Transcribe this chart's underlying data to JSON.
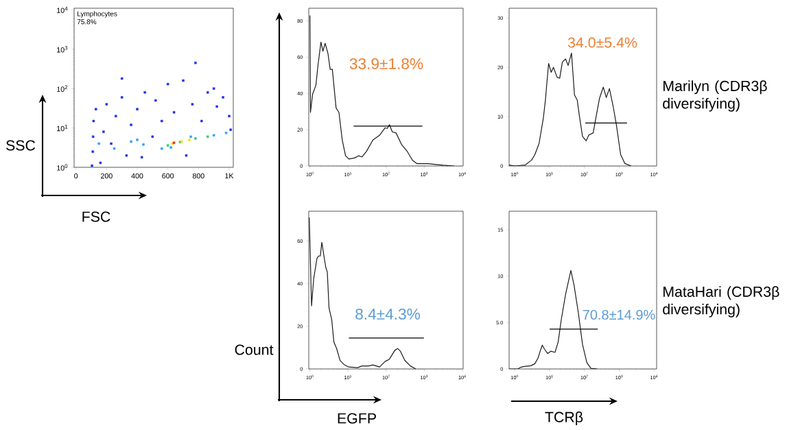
{
  "chart_data": [
    {
      "type": "scatter",
      "xlabel": "FSC",
      "ylabel": "SSC",
      "log": "y",
      "marker": "square",
      "annotations": [
        "Lymphocytes",
        "75.8%"
      ],
      "xlim": [
        -12,
        1027
      ],
      "ylim": [
        1,
        11000
      ],
      "xticks": [
        0,
        200,
        400,
        600,
        800,
        {
          "value": 1000,
          "label": "1K"
        }
      ],
      "yticks": [
        {
          "value": 1,
          "label": "10$^{0}$"
        },
        {
          "value": 10,
          "label": "10$^{1}$"
        },
        {
          "value": 100,
          "label": "10$^{2}$"
        },
        {
          "value": 1000,
          "label": "10$^{3}$"
        },
        {
          "value": 10000,
          "label": "10$^{4}$"
        }
      ],
      "series": [
        {
          "x": [
            105,
            110,
            112,
            115,
            130,
            160,
            180,
            200,
            230,
            260,
            300,
            300,
            330,
            360,
            400,
            430,
            450,
            500,
            520,
            560,
            600,
            640,
            700,
            720,
            760,
            780,
            820,
            860,
            900,
            920,
            960,
            1000,
            1010,
            150,
            250,
            360,
            400,
            440,
            560,
            620,
            900,
            980,
            750,
            600,
            680,
            780,
            860,
            630,
            690,
            740,
            640
          ],
          "values": [
            1.1,
            2.5,
            6,
            15,
            30,
            1.3,
            8,
            40,
            4,
            20,
            180,
            60,
            2,
            12,
            30,
            1.8,
            80,
            6,
            50,
            15,
            130,
            25,
            160,
            2,
            40,
            450,
            15,
            80,
            100,
            35,
            60,
            20,
            9,
            4,
            3,
            4.5,
            5,
            3.8,
            3,
            3.2,
            6.5,
            7.5,
            6,
            3.6,
            4.4,
            5.4,
            6,
            4,
            4.5,
            5,
            4.2
          ],
          "colors": [
            "#2030f0",
            "#2030f0",
            "#2030f0",
            "#2030f0",
            "#2030f0",
            "#2030f0",
            "#2030f0",
            "#2030f0",
            "#2030f0",
            "#2030f0",
            "#2030f0",
            "#2030f0",
            "#2030f0",
            "#2030f0",
            "#2030f0",
            "#2030f0",
            "#2030f0",
            "#2030f0",
            "#2030f0",
            "#2030f0",
            "#2030f0",
            "#2030f0",
            "#2030f0",
            "#2030f0",
            "#2030f0",
            "#2030f0",
            "#2030f0",
            "#2030f0",
            "#2030f0",
            "#2030f0",
            "#2030f0",
            "#2030f0",
            "#2030f0",
            "#30a0ff",
            "#30a0ff",
            "#30a0ff",
            "#30a0ff",
            "#30a0ff",
            "#30a0ff",
            "#30a0ff",
            "#30a0ff",
            "#30a0ff",
            "#30a0ff",
            "#30d070",
            "#30d070",
            "#30d070",
            "#30d070",
            "#f0e000",
            "#f0e000",
            "#f0e000",
            "#e83010"
          ]
        }
      ]
    },
    {
      "type": "line",
      "log": "x",
      "annotations": [
        "33.9±1.8%"
      ],
      "xlim": [
        0.93,
        10500
      ],
      "ylim": [
        0,
        87
      ],
      "xticks": [
        {
          "value": 1,
          "label": "10$^{0}$"
        },
        {
          "value": 10,
          "label": "10$^{1}$"
        },
        {
          "value": 100,
          "label": "10$^{2}$"
        },
        {
          "value": 1000,
          "label": "10$^{3}$"
        },
        {
          "value": 10000,
          "label": "10$^{4}$"
        }
      ],
      "yticks": [
        0,
        20,
        40,
        60,
        80
      ],
      "series": [
        {
          "color": "#1a1a1a",
          "x": [
            1,
            1.03,
            1.17,
            1.43,
            1.63,
            1.94,
            2.19,
            2.5,
            2.97,
            3.39,
            3.87,
            4.85,
            5.77,
            7.03,
            8.58,
            10.5,
            14.6,
            19.0,
            23.2,
            30.3,
            45.1,
            67.1,
            93.5,
            107,
            122,
            145,
            182,
            253,
            353,
            492,
            641,
            1245,
            1854,
            3155,
            6120
          ],
          "values": [
            83,
            29.5,
            39.5,
            44.5,
            55.8,
            68.3,
            63.3,
            67.7,
            62,
            53.3,
            53.3,
            32,
            29.5,
            14.4,
            5.6,
            3.8,
            4.4,
            5.6,
            5,
            8,
            14.4,
            16.9,
            21,
            20.7,
            22.8,
            18.8,
            18.2,
            11.9,
            8.2,
            3.1,
            1.3,
            1.3,
            0.9,
            0.4,
            0
          ]
        },
        {
          "color": "#000000",
          "x": [
            14.0,
            893
          ],
          "values": [
            22,
            22
          ]
        }
      ]
    },
    {
      "type": "line",
      "log": "x",
      "annotations": [
        "34.0±5.4%",
        "Marilyn (CDR3β diversifying)"
      ],
      "xlim": [
        0.69,
        11800
      ],
      "ylim": [
        0,
        32
      ],
      "xticks": [
        {
          "value": 1,
          "label": "10$^{0}$"
        },
        {
          "value": 10,
          "label": "10$^{1}$"
        },
        {
          "value": 100,
          "label": "10$^{2}$"
        },
        {
          "value": 1000,
          "label": "10$^{3}$"
        },
        {
          "value": 10000,
          "label": "10$^{4}$"
        }
      ],
      "yticks": [
        0,
        10,
        20,
        30
      ],
      "series": [
        {
          "color": "#1a1a1a",
          "x": [
            0.69,
            1,
            1.42,
            2.01,
            3.06,
            3.78,
            5.0,
            6.62,
            7.61,
            8.16,
            9.39,
            11.1,
            12.9,
            16.4,
            19.5,
            23.3,
            28.8,
            34.0,
            42.6,
            51.8,
            62.1,
            71.4,
            88.1,
            112,
            134,
            178,
            219,
            270,
            348,
            423,
            521,
            671,
            828,
            1096,
            1449,
            2203
          ],
          "values": [
            0.2,
            0,
            0.1,
            0.2,
            1.2,
            2.3,
            4.6,
            9.7,
            13.4,
            16,
            20.8,
            19,
            20,
            18,
            17.8,
            21.1,
            21.7,
            20.4,
            22.9,
            14.4,
            13.4,
            10.2,
            6.0,
            5.1,
            6.3,
            6.7,
            10.2,
            13.7,
            16.0,
            13.9,
            15.7,
            12.0,
            8.3,
            2.3,
            0.5,
            0
          ]
        },
        {
          "color": "#000000",
          "x": [
            106,
            1667
          ],
          "values": [
            8.7,
            8.7
          ]
        }
      ]
    },
    {
      "type": "line",
      "log": "x",
      "xlabel": "EGFP",
      "ylabel": "Count",
      "annotations": [
        "8.4±4.3%"
      ],
      "xlim": [
        0.93,
        10500
      ],
      "ylim": [
        0,
        74
      ],
      "xticks": [
        {
          "value": 1,
          "label": "10$^{0}$"
        },
        {
          "value": 10,
          "label": "10$^{1}$"
        },
        {
          "value": 100,
          "label": "10$^{2}$"
        },
        {
          "value": 1000,
          "label": "10$^{3}$"
        },
        {
          "value": 10000,
          "label": "10$^{4}$"
        }
      ],
      "yticks": [
        0,
        20,
        40,
        60
      ],
      "series": [
        {
          "color": "#1a1a1a",
          "x": [
            0.96,
            1.1,
            1.25,
            1.53,
            1.68,
            1.87,
            2.05,
            2.28,
            2.6,
            2.85,
            3.17,
            3.72,
            4.25,
            5.05,
            6.16,
            8.04,
            10.5,
            17.8,
            23.2,
            34.6,
            45.1,
            67.1,
            93.5,
            122,
            170,
            200,
            237,
            309,
            431,
            600
          ],
          "values": [
            71,
            29.6,
            42.3,
            51.9,
            53,
            53,
            59.4,
            54,
            47.7,
            45.5,
            28.5,
            23.2,
            12.6,
            9.4,
            4.0,
            1.9,
            0.9,
            0.6,
            1.4,
            1.4,
            1.9,
            0.9,
            3.5,
            4.6,
            8.8,
            9.6,
            8.3,
            4.0,
            1.4,
            0
          ]
        },
        {
          "color": "#000000",
          "x": [
            10.5,
            980
          ],
          "values": [
            14.5,
            14.5
          ]
        }
      ]
    },
    {
      "type": "line",
      "log": "x",
      "xlabel": "TCRβ",
      "annotations": [
        "70.8±14.9%",
        "MataHari (CDR3β diversifying)"
      ],
      "xlim": [
        0.69,
        11800
      ],
      "ylim": [
        0,
        17
      ],
      "xticks": [
        {
          "value": 1,
          "label": "10$^{0}$"
        },
        {
          "value": 10,
          "label": "10$^{1}$"
        },
        {
          "value": 100,
          "label": "10$^{2}$"
        },
        {
          "value": 1000,
          "label": "10$^{3}$"
        },
        {
          "value": 10000,
          "label": "10$^{4}$"
        }
      ],
      "yticks": [
        0,
        {
          "value": 5,
          "label": "5.0"
        },
        10,
        15
      ],
      "series": [
        {
          "color": "#1a1a1a",
          "x": [
            0.69,
            1.23,
            1.52,
            2.01,
            2.86,
            3.78,
            4.67,
            5.36,
            6.17,
            7.09,
            8.75,
            10.8,
            14.3,
            17.6,
            21.7,
            28.8,
            40.8,
            50.4,
            66.7,
            88.1,
            117,
            154,
            235
          ],
          "values": [
            0,
            0,
            0.2,
            0.29,
            0.34,
            0.56,
            1.18,
            1.91,
            2.57,
            2.16,
            1.67,
            1.91,
            1.79,
            2.89,
            5.34,
            8.04,
            10.61,
            9.02,
            6.08,
            2.65,
            0.69,
            0.07,
            0
          ]
        },
        {
          "color": "#000000",
          "x": [
            10.07,
            242
          ],
          "values": [
            4.3,
            4.3
          ]
        }
      ]
    }
  ]
}
